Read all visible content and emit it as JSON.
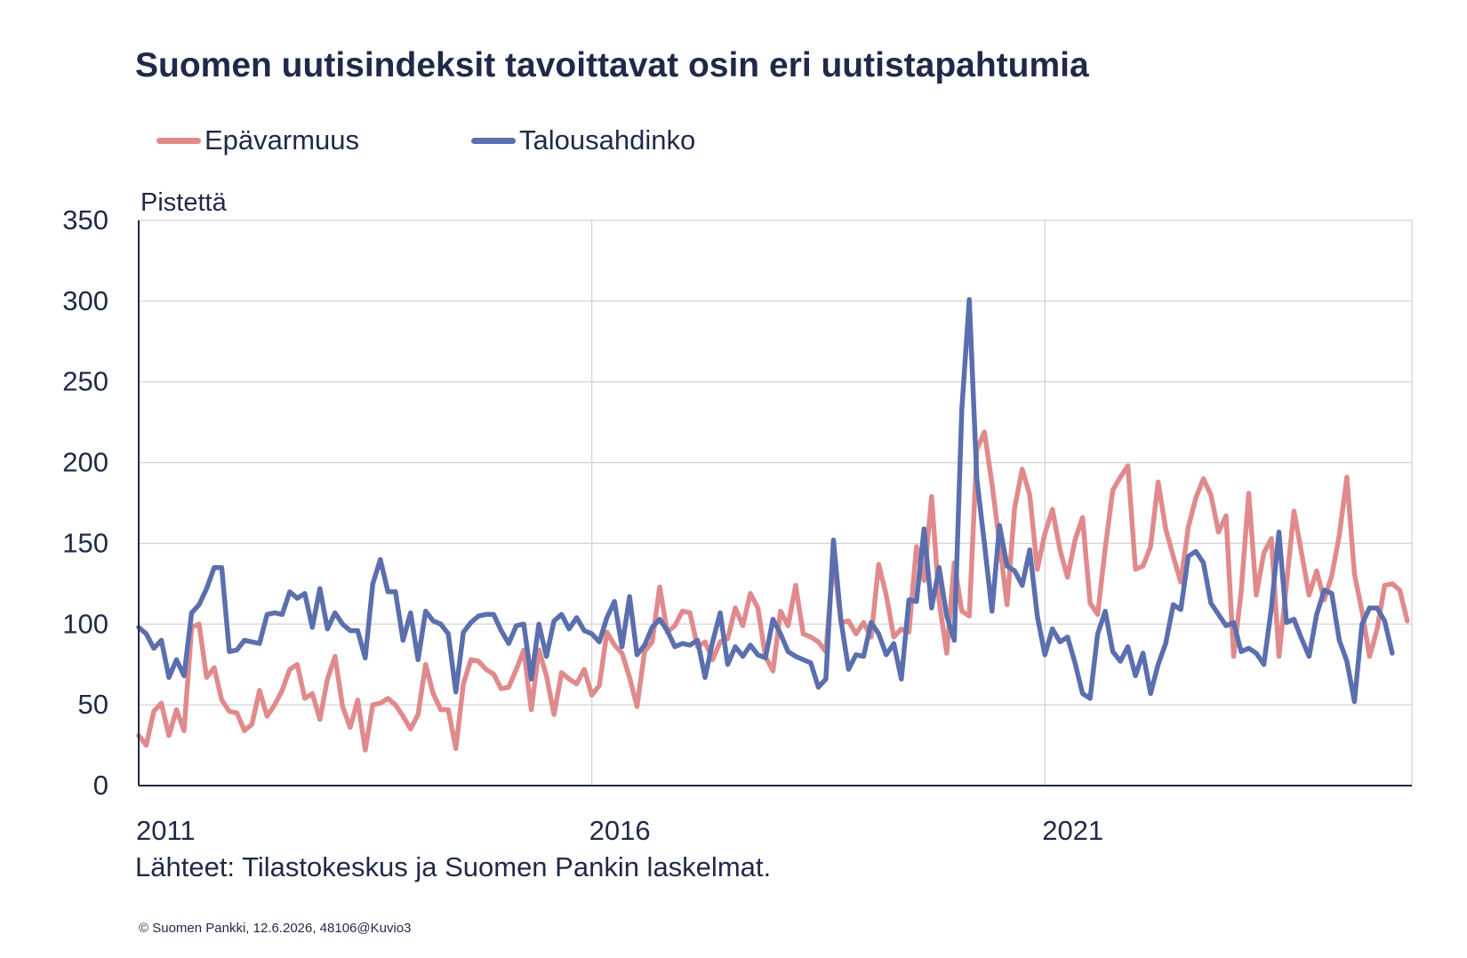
{
  "chart_data": {
    "type": "line",
    "title": "Suomen uutisindeksit tavoittavat osin eri uutistapahtumia",
    "ylabel": "Pistettä",
    "xlabel": "",
    "ylim": [
      0,
      350
    ],
    "xlim": [
      2011.0,
      2025.05
    ],
    "yticks": [
      0,
      50,
      100,
      150,
      200,
      250,
      300,
      350
    ],
    "xticks": [
      {
        "label": "2011",
        "value": 2011.0
      },
      {
        "label": "2016",
        "value": 2016.0
      },
      {
        "label": "2021",
        "value": 2021.0
      }
    ],
    "grid": true,
    "legend_position": "top-left",
    "series": [
      {
        "name": "Epävarmuus",
        "color": "#e08a8d",
        "start": 2011.0,
        "step": 0.08333,
        "values": [
          31,
          25,
          46,
          51,
          31,
          47,
          34,
          98,
          100,
          67,
          73,
          53,
          46,
          45,
          34,
          38,
          59,
          43,
          50,
          59,
          72,
          75,
          54,
          57,
          41,
          66,
          80,
          49,
          36,
          53,
          22,
          50,
          51,
          54,
          50,
          43,
          35,
          44,
          75,
          57,
          47,
          47,
          23,
          63,
          78,
          77,
          72,
          69,
          60,
          61,
          72,
          84,
          47,
          84,
          68,
          44,
          70,
          66,
          63,
          72,
          56,
          62,
          95,
          87,
          82,
          67,
          49,
          83,
          89,
          123,
          95,
          99,
          108,
          107,
          86,
          89,
          78,
          89,
          91,
          110,
          99,
          119,
          110,
          80,
          71,
          108,
          99,
          124,
          94,
          92,
          89,
          83,
          141,
          101,
          102,
          94,
          101,
          92,
          137,
          118,
          92,
          97,
          95,
          148,
          127,
          179,
          114,
          82,
          138,
          108,
          105,
          208,
          219,
          187,
          150,
          112,
          172,
          196,
          180,
          134,
          156,
          171,
          146,
          129,
          152,
          166,
          113,
          106,
          147,
          183,
          191,
          198,
          134,
          136,
          148,
          188,
          159,
          142,
          126,
          160,
          178,
          190,
          180,
          157,
          167,
          80,
          120,
          181,
          118,
          144,
          153,
          80,
          125,
          170,
          144,
          118,
          133,
          115,
          130,
          155,
          191,
          131,
          108,
          80,
          97,
          124,
          125,
          121,
          102
        ]
      },
      {
        "name": "Talousahdinko",
        "color": "#5b6fae",
        "start": 2011.0,
        "step": 0.08333,
        "values": [
          98,
          94,
          85,
          90,
          67,
          78,
          68,
          107,
          112,
          122,
          135,
          135,
          83,
          84,
          90,
          89,
          88,
          106,
          107,
          106,
          120,
          116,
          119,
          98,
          122,
          97,
          107,
          100,
          96,
          96,
          79,
          125,
          140,
          120,
          120,
          90,
          107,
          78,
          108,
          102,
          100,
          94,
          58,
          95,
          101,
          105,
          106,
          106,
          96,
          88,
          99,
          100,
          66,
          100,
          80,
          102,
          106,
          97,
          104,
          96,
          94,
          89,
          104,
          114,
          86,
          117,
          81,
          87,
          98,
          103,
          96,
          86,
          88,
          87,
          90,
          67,
          89,
          107,
          75,
          86,
          80,
          87,
          81,
          79,
          103,
          94,
          83,
          80,
          78,
          76,
          61,
          66,
          152,
          102,
          72,
          81,
          80,
          101,
          94,
          81,
          88,
          66,
          115,
          114,
          159,
          110,
          135,
          105,
          90,
          233,
          301,
          190,
          150,
          108,
          161,
          136,
          133,
          124,
          146,
          105,
          81,
          97,
          89,
          92,
          76,
          57,
          54,
          94,
          108,
          83,
          77,
          86,
          68,
          82,
          57,
          75,
          88,
          112,
          109,
          142,
          145,
          138,
          113,
          106,
          99,
          101,
          83,
          85,
          82,
          75,
          110,
          157,
          101,
          103,
          91,
          80,
          106,
          121,
          119,
          90,
          77,
          52,
          100,
          110,
          110,
          102,
          82
        ]
      }
    ]
  },
  "unit_label": "Pistettä",
  "source_text": "Lähteet: Tilastokeskus ja Suomen Pankin laskelmat.",
  "copyright_text": "© Suomen Pankki, 12.6.2026, 48106@Kuvio3"
}
